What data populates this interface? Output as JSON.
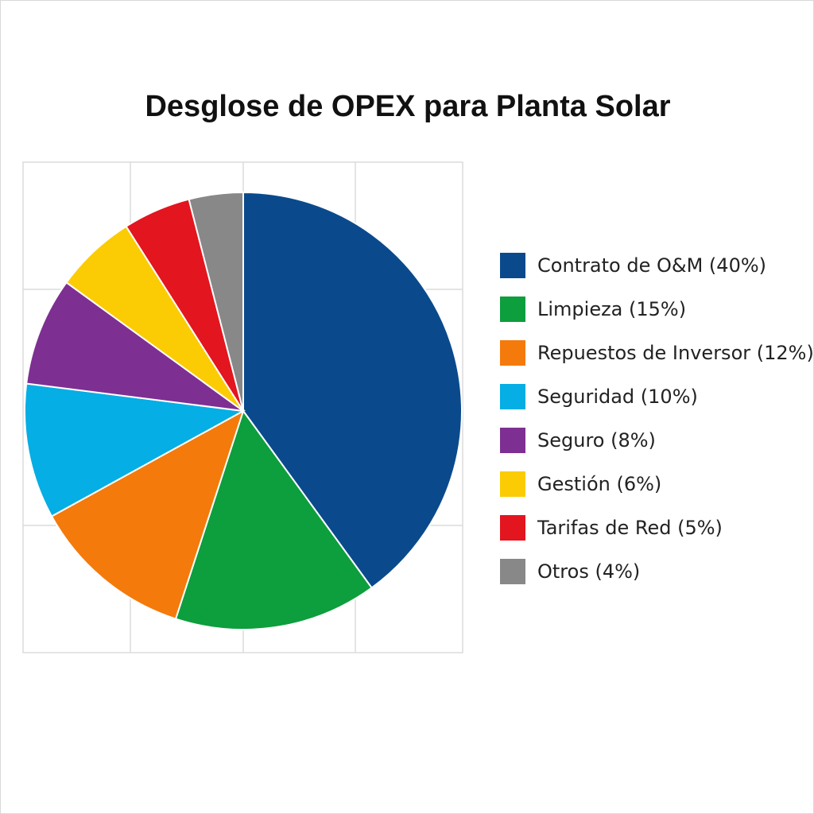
{
  "chart_data": {
    "type": "pie",
    "title": "Desglose de OPEX para Planta Solar",
    "slices": [
      {
        "label": "Contrato de O&M (40%)",
        "value": 40,
        "color": "#0a4a8c"
      },
      {
        "label": "Limpieza (15%)",
        "value": 15,
        "color": "#0d9e3e"
      },
      {
        "label": "Repuestos de Inversor (12%)",
        "value": 12,
        "color": "#f47a0b"
      },
      {
        "label": "Seguridad (10%)",
        "value": 10,
        "color": "#05aee4"
      },
      {
        "label": "Seguro (8%)",
        "value": 8,
        "color": "#7e2f92"
      },
      {
        "label": "Gestión (6%)",
        "value": 6,
        "color": "#fbcc04"
      },
      {
        "label": "Tarifas de Red (5%)",
        "value": 5,
        "color": "#e3151f"
      },
      {
        "label": "Otros (4%)",
        "value": 4,
        "color": "#888888"
      }
    ],
    "grid": true,
    "legend_position": "right"
  }
}
